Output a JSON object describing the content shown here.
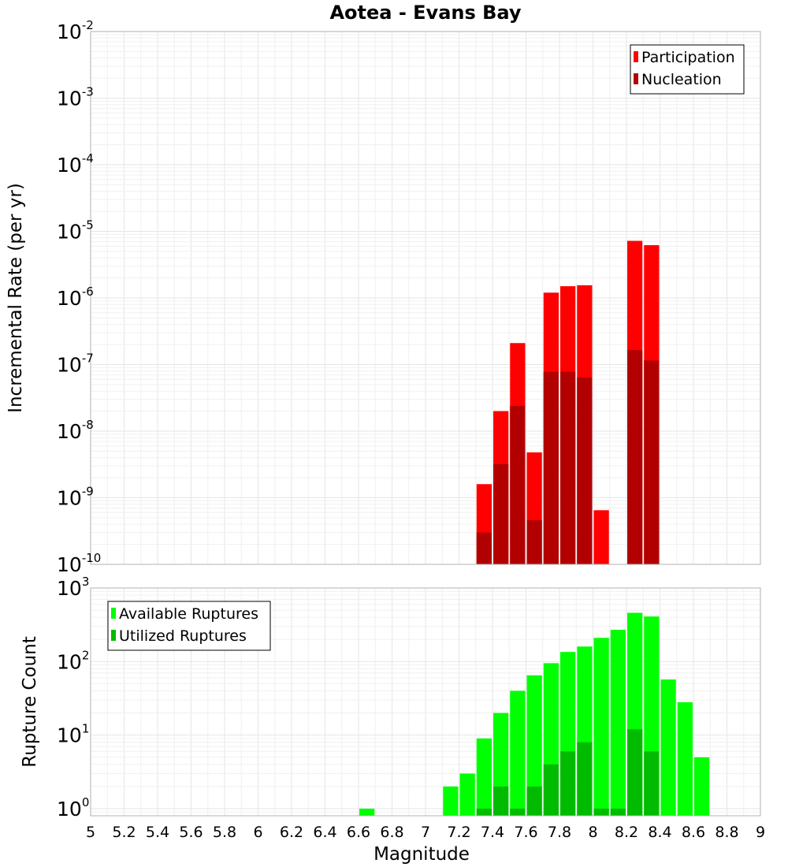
{
  "figure": {
    "title": "Aotea - Evans Bay",
    "xlabel": "Magnitude",
    "x_ticks": [
      "5",
      "5.2",
      "5.4",
      "5.6",
      "5.8",
      "6",
      "6.2",
      "6.4",
      "6.6",
      "6.8",
      "7",
      "7.2",
      "7.4",
      "7.6",
      "7.8",
      "8",
      "8.2",
      "8.4",
      "8.6",
      "8.8",
      "9"
    ],
    "xlim": [
      5,
      9
    ],
    "bin_width": 0.1
  },
  "chart_data": [
    {
      "type": "bar",
      "ylabel": "Incremental Rate (per yr)",
      "yscale": "log",
      "ylim": [
        1e-10,
        0.01
      ],
      "y_ticks": [
        {
          "base": "10",
          "exp": "-10"
        },
        {
          "base": "10",
          "exp": "-9"
        },
        {
          "base": "10",
          "exp": "-8"
        },
        {
          "base": "10",
          "exp": "-7"
        },
        {
          "base": "10",
          "exp": "-6"
        },
        {
          "base": "10",
          "exp": "-5"
        },
        {
          "base": "10",
          "exp": "-4"
        },
        {
          "base": "10",
          "exp": "-3"
        },
        {
          "base": "10",
          "exp": "-2"
        }
      ],
      "legend_position": "top-right",
      "series": [
        {
          "name": "Participation",
          "color": "#ff0000",
          "x": [
            7.35,
            7.45,
            7.55,
            7.65,
            7.75,
            7.85,
            7.95,
            8.05,
            8.25,
            8.35
          ],
          "values": [
            1.6e-09,
            2e-08,
            2.1e-07,
            4.8e-09,
            1.2e-06,
            1.5e-06,
            1.55e-06,
            6.5e-10,
            7.2e-06,
            6.2e-06
          ]
        },
        {
          "name": "Nucleation",
          "color": "#b20000",
          "x": [
            7.35,
            7.45,
            7.55,
            7.65,
            7.75,
            7.85,
            7.95,
            8.25,
            8.35
          ],
          "values": [
            3e-10,
            3.2e-09,
            2.4e-08,
            4.6e-10,
            7.8e-08,
            7.8e-08,
            6.4e-08,
            1.65e-07,
            1.15e-07
          ]
        }
      ]
    },
    {
      "type": "bar",
      "ylabel": "Rupture Count",
      "yscale": "log",
      "ylim": [
        0.8,
        1000
      ],
      "y_ticks": [
        {
          "base": "10",
          "exp": "0"
        },
        {
          "base": "10",
          "exp": "1"
        },
        {
          "base": "10",
          "exp": "2"
        },
        {
          "base": "10",
          "exp": "3"
        }
      ],
      "legend_position": "top-left",
      "series": [
        {
          "name": "Available Ruptures",
          "color": "#00ff00",
          "x": [
            6.65,
            7.15,
            7.25,
            7.35,
            7.45,
            7.55,
            7.65,
            7.75,
            7.85,
            7.95,
            8.05,
            8.15,
            8.25,
            8.35,
            8.45,
            8.55,
            8.65
          ],
          "values": [
            1,
            2,
            3,
            9,
            20,
            40,
            65,
            95,
            135,
            160,
            210,
            270,
            460,
            410,
            57,
            28,
            5
          ]
        },
        {
          "name": "Utilized Ruptures",
          "color": "#00bb00",
          "x": [
            7.35,
            7.45,
            7.55,
            7.65,
            7.75,
            7.85,
            7.95,
            8.05,
            8.15,
            8.25,
            8.35
          ],
          "values": [
            1,
            2,
            1,
            2,
            4,
            6,
            8,
            1,
            1,
            12,
            6
          ]
        }
      ]
    }
  ]
}
